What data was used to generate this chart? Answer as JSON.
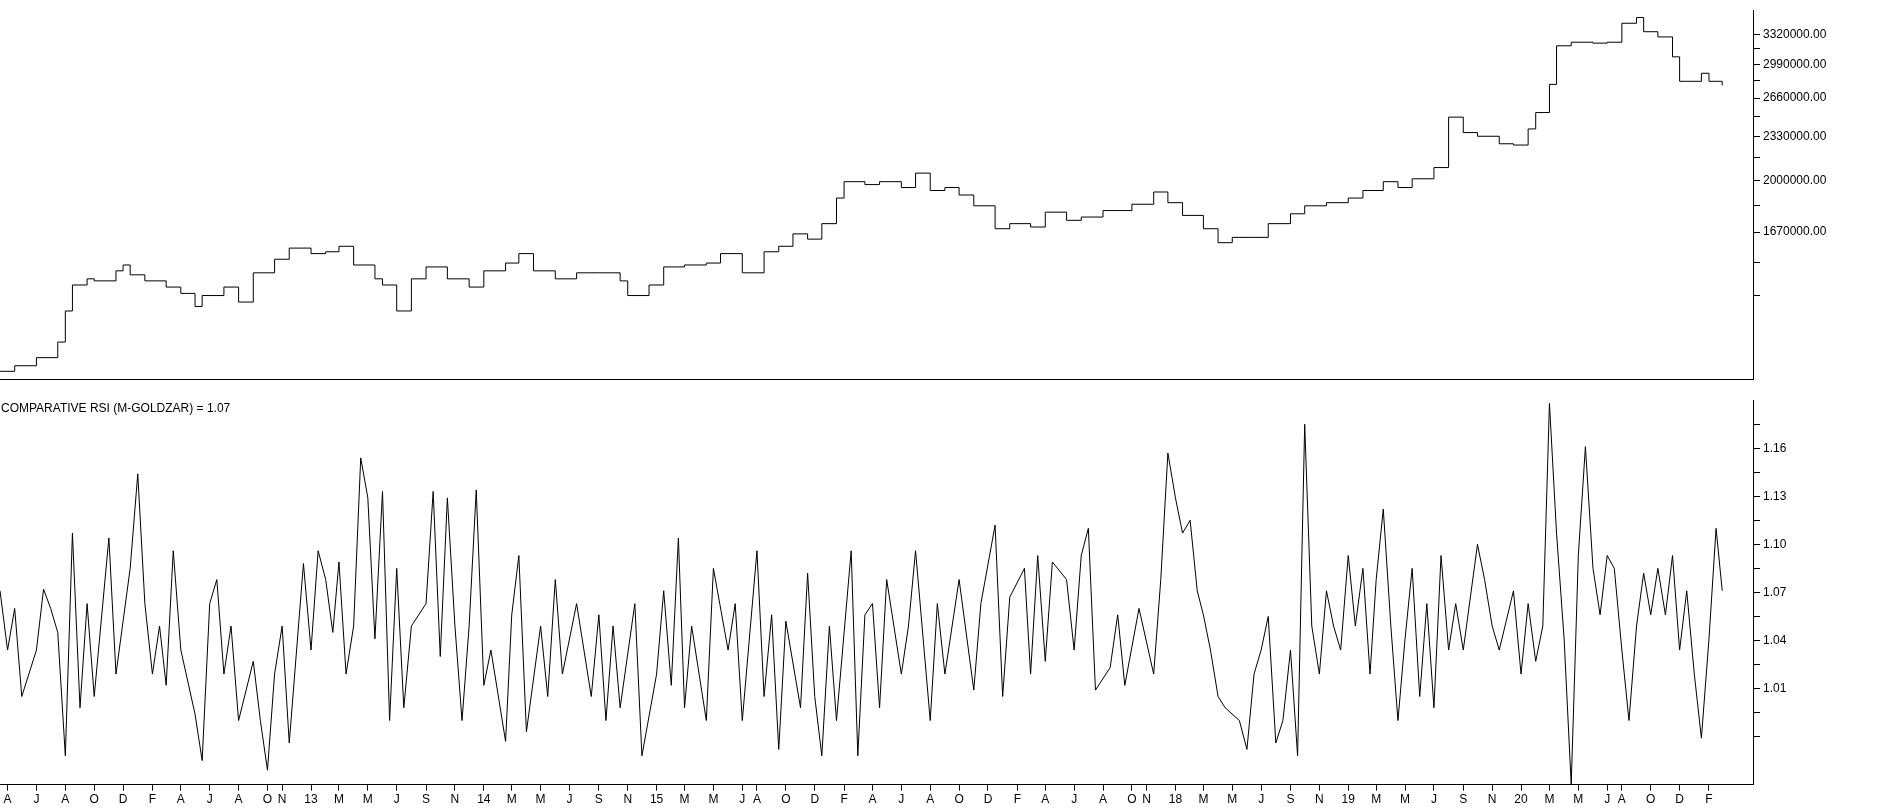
{
  "chart_data": [
    {
      "type": "step",
      "x": [
        "2011-03-16",
        "2011-04-16",
        "2011-06-01",
        "2011-07-16",
        "2011-08-01",
        "2011-08-16",
        "2011-09-16",
        "2011-10-01",
        "2011-11-16",
        "2011-12-01",
        "2011-12-16",
        "2012-01-16",
        "2012-03-01",
        "2012-04-01",
        "2012-05-01",
        "2012-05-16",
        "2012-07-01",
        "2012-08-01",
        "2012-09-01",
        "2012-10-16",
        "2012-11-16",
        "2013-01-01",
        "2013-02-01",
        "2013-03-01",
        "2013-04-01",
        "2013-05-16",
        "2013-06-01",
        "2013-07-01",
        "2013-08-01",
        "2013-09-01",
        "2013-10-16",
        "2013-12-01",
        "2014-01-01",
        "2014-02-16",
        "2014-03-16",
        "2014-04-16",
        "2014-06-01",
        "2014-07-16",
        "2014-09-01",
        "2014-10-16",
        "2014-11-01",
        "2014-12-16",
        "2015-01-16",
        "2015-03-01",
        "2015-04-16",
        "2015-05-16",
        "2015-07-01",
        "2015-08-16",
        "2015-09-16",
        "2015-10-16",
        "2015-11-16",
        "2015-12-16",
        "2016-01-16",
        "2016-02-01",
        "2016-03-16",
        "2016-04-16",
        "2016-06-01",
        "2016-07-01",
        "2016-08-01",
        "2016-09-01",
        "2016-10-01",
        "2016-11-01",
        "2016-12-16",
        "2017-01-16",
        "2017-03-01",
        "2017-04-01",
        "2017-05-16",
        "2017-06-16",
        "2017-08-01",
        "2017-10-01",
        "2017-11-16",
        "2017-12-16",
        "2018-01-16",
        "2018-03-01",
        "2018-04-01",
        "2018-05-01",
        "2018-06-16",
        "2018-07-16",
        "2018-09-01",
        "2018-10-01",
        "2018-11-16",
        "2019-01-01",
        "2019-02-01",
        "2019-03-16",
        "2019-04-16",
        "2019-05-16",
        "2019-07-01",
        "2019-08-01",
        "2019-09-01",
        "2019-10-01",
        "2019-11-16",
        "2019-12-16",
        "2020-01-16",
        "2020-02-01",
        "2020-03-01",
        "2020-03-16",
        "2020-04-16",
        "2020-06-01",
        "2020-07-01",
        "2020-08-01",
        "2020-09-01",
        "2020-09-16",
        "2020-10-16",
        "2020-11-16",
        "2020-12-01",
        "2021-01-16",
        "2021-02-01",
        "2021-03-01"
      ],
      "xlim": [
        "2011-03-16",
        "2021-05-05"
      ],
      "series": [
        {
          "color": "#000000",
          "values": [
            1030000,
            1050000,
            1080000,
            1140000,
            1270000,
            1390000,
            1420000,
            1410000,
            1460000,
            1490000,
            1440000,
            1410000,
            1380000,
            1350000,
            1290000,
            1340000,
            1380000,
            1310000,
            1450000,
            1520000,
            1580000,
            1550000,
            1560000,
            1590000,
            1490000,
            1420000,
            1390000,
            1270000,
            1420000,
            1480000,
            1420000,
            1380000,
            1460000,
            1500000,
            1550000,
            1460000,
            1420000,
            1450000,
            1450000,
            1410000,
            1340000,
            1390000,
            1480000,
            1490000,
            1500000,
            1550000,
            1450000,
            1560000,
            1590000,
            1660000,
            1630000,
            1720000,
            1880000,
            1990000,
            1970000,
            1990000,
            1950000,
            2050000,
            1930000,
            1950000,
            1900000,
            1830000,
            1690000,
            1720000,
            1700000,
            1790000,
            1740000,
            1760000,
            1800000,
            1840000,
            1920000,
            1850000,
            1770000,
            1690000,
            1610000,
            1640000,
            1640000,
            1720000,
            1780000,
            1830000,
            1850000,
            1880000,
            1930000,
            1990000,
            1950000,
            2010000,
            2090000,
            2490000,
            2360000,
            2330000,
            2270000,
            2260000,
            2390000,
            2530000,
            2790000,
            3190000,
            3230000,
            3220000,
            3230000,
            3450000,
            3520000,
            3350000,
            3290000,
            3070000,
            2820000,
            2900000,
            2820000,
            2780000
          ]
        }
      ],
      "log": true,
      "ylim": [
        1000000,
        3610000
      ],
      "yticks": [
        {
          "value": 3320000,
          "label": "3320000.00"
        },
        {
          "value": 3155000,
          "label": null
        },
        {
          "value": 2990000,
          "label": "2990000.00"
        },
        {
          "value": 2825000,
          "label": null
        },
        {
          "value": 2660000,
          "label": "2660000.00"
        },
        {
          "value": 2495000,
          "label": null
        },
        {
          "value": 2330000,
          "label": "2330000.00"
        },
        {
          "value": 2165000,
          "label": null
        },
        {
          "value": 2000000,
          "label": "2000000.00"
        },
        {
          "value": 1835000,
          "label": null
        },
        {
          "value": 1670000,
          "label": "1670000.00"
        },
        {
          "value": 1505000,
          "label": null
        },
        {
          "value": 1340000,
          "label": null
        }
      ],
      "tick_labels": "y"
    },
    {
      "type": "line",
      "title": "COMPARATIVE RSI (M-GOLDZAR) = 1.07",
      "x": [
        "2011-03-16",
        "2011-04-01",
        "2011-04-16",
        "2011-05-01",
        "2011-06-01",
        "2011-06-16",
        "2011-07-01",
        "2011-07-16",
        "2011-08-01",
        "2011-08-16",
        "2011-09-01",
        "2011-09-16",
        "2011-10-01",
        "2011-11-01",
        "2011-11-16",
        "2011-12-16",
        "2012-01-01",
        "2012-01-16",
        "2012-02-01",
        "2012-02-16",
        "2012-03-01",
        "2012-03-16",
        "2012-04-01",
        "2012-05-01",
        "2012-05-16",
        "2012-06-01",
        "2012-06-16",
        "2012-07-01",
        "2012-07-16",
        "2012-08-01",
        "2012-09-01",
        "2012-09-16",
        "2012-10-01",
        "2012-10-16",
        "2012-11-01",
        "2012-11-16",
        "2012-12-16",
        "2013-01-01",
        "2013-01-16",
        "2013-02-01",
        "2013-02-16",
        "2013-03-01",
        "2013-03-16",
        "2013-04-01",
        "2013-04-16",
        "2013-05-01",
        "2013-05-16",
        "2013-06-01",
        "2013-06-16",
        "2013-07-01",
        "2013-07-16",
        "2013-08-01",
        "2013-09-01",
        "2013-09-16",
        "2013-10-01",
        "2013-10-16",
        "2013-11-01",
        "2013-11-16",
        "2013-12-01",
        "2013-12-16",
        "2014-01-01",
        "2014-01-16",
        "2014-02-16",
        "2014-03-01",
        "2014-03-16",
        "2014-04-01",
        "2014-05-01",
        "2014-05-16",
        "2014-06-01",
        "2014-06-16",
        "2014-07-16",
        "2014-08-16",
        "2014-09-01",
        "2014-09-16",
        "2014-10-01",
        "2014-10-16",
        "2014-11-16",
        "2014-12-01",
        "2015-01-01",
        "2015-01-16",
        "2015-02-01",
        "2015-02-16",
        "2015-03-01",
        "2015-03-16",
        "2015-04-16",
        "2015-05-01",
        "2015-06-01",
        "2015-06-16",
        "2015-07-01",
        "2015-08-01",
        "2015-08-16",
        "2015-09-01",
        "2015-09-16",
        "2015-10-01",
        "2015-11-01",
        "2015-11-16",
        "2015-12-01",
        "2015-12-16",
        "2016-01-01",
        "2016-01-16",
        "2016-02-16",
        "2016-03-01",
        "2016-03-16",
        "2016-04-01",
        "2016-04-16",
        "2016-05-01",
        "2016-06-01",
        "2016-06-16",
        "2016-07-01",
        "2016-08-01",
        "2016-08-16",
        "2016-09-01",
        "2016-10-01",
        "2016-11-01",
        "2016-11-16",
        "2016-12-16",
        "2017-01-01",
        "2017-01-16",
        "2017-02-16",
        "2017-03-01",
        "2017-03-16",
        "2017-04-01",
        "2017-04-16",
        "2017-05-16",
        "2017-06-01",
        "2017-06-16",
        "2017-07-01",
        "2017-07-16",
        "2017-08-16",
        "2017-09-01",
        "2017-09-16",
        "2017-10-16",
        "2017-11-16",
        "2017-12-01",
        "2017-12-16",
        "2018-01-01",
        "2018-01-16",
        "2018-02-01",
        "2018-02-16",
        "2018-03-01",
        "2018-03-16",
        "2018-04-01",
        "2018-04-16",
        "2018-05-16",
        "2018-06-01",
        "2018-06-16",
        "2018-07-01",
        "2018-07-16",
        "2018-08-01",
        "2018-08-16",
        "2018-09-01",
        "2018-09-16",
        "2018-10-01",
        "2018-10-16",
        "2018-11-01",
        "2018-11-16",
        "2018-12-01",
        "2018-12-16",
        "2019-01-01",
        "2019-01-16",
        "2019-02-01",
        "2019-02-16",
        "2019-03-01",
        "2019-03-16",
        "2019-04-01",
        "2019-04-16",
        "2019-05-01",
        "2019-05-16",
        "2019-06-01",
        "2019-06-16",
        "2019-07-01",
        "2019-07-16",
        "2019-08-01",
        "2019-08-16",
        "2019-09-01",
        "2019-10-01",
        "2019-10-16",
        "2019-11-01",
        "2019-11-16",
        "2019-12-16",
        "2020-01-01",
        "2020-01-16",
        "2020-02-01",
        "2020-02-16",
        "2020-03-01",
        "2020-03-16",
        "2020-04-01",
        "2020-04-16",
        "2020-05-01",
        "2020-05-16",
        "2020-06-01",
        "2020-06-16",
        "2020-07-01",
        "2020-07-16",
        "2020-08-01",
        "2020-08-16",
        "2020-09-01",
        "2020-09-16",
        "2020-10-01",
        "2020-10-16",
        "2020-11-01",
        "2020-11-16",
        "2020-12-01",
        "2020-12-16",
        "2021-01-01",
        "2021-01-16",
        "2021-02-01",
        "2021-02-16",
        "2021-03-01"
      ],
      "series": [
        {
          "color": "#000000",
          "values": [
            1.071,
            1.034,
            1.06,
            1.005,
            1.034,
            1.072,
            1.06,
            1.045,
            0.968,
            1.107,
            0.998,
            1.063,
            1.005,
            1.104,
            1.019,
            1.085,
            1.144,
            1.063,
            1.019,
            1.049,
            1.012,
            1.096,
            1.034,
            0.994,
            0.965,
            1.063,
            1.078,
            1.019,
            1.049,
            0.99,
            1.027,
            0.99,
            0.959,
            1.019,
            1.049,
            0.976,
            1.088,
            1.034,
            1.096,
            1.078,
            1.045,
            1.089,
            1.019,
            1.049,
            1.154,
            1.129,
            1.041,
            1.133,
            0.99,
            1.085,
            0.998,
            1.049,
            1.063,
            1.133,
            1.03,
            1.129,
            1.049,
            0.99,
            1.049,
            1.134,
            1.012,
            1.034,
            0.977,
            1.056,
            1.093,
            0.983,
            1.049,
            1.005,
            1.078,
            1.019,
            1.063,
            1.005,
            1.056,
            0.99,
            1.049,
            0.998,
            1.063,
            0.968,
            1.019,
            1.071,
            1.012,
            1.104,
            0.998,
            1.049,
            0.99,
            1.085,
            1.034,
            1.063,
            0.99,
            1.096,
            1.005,
            1.056,
            0.972,
            1.052,
            0.998,
            1.082,
            1.005,
            0.968,
            1.049,
            0.99,
            1.096,
            0.968,
            1.056,
            1.063,
            0.998,
            1.078,
            1.019,
            1.049,
            1.096,
            0.99,
            1.063,
            1.019,
            1.078,
            1.009,
            1.063,
            1.112,
            1.005,
            1.067,
            1.085,
            1.019,
            1.093,
            1.027,
            1.089,
            1.078,
            1.034,
            1.093,
            1.11,
            1.009,
            1.023,
            1.056,
            1.012,
            1.06,
            1.019,
            1.078,
            1.157,
            1.129,
            1.107,
            1.115,
            1.071,
            1.056,
            1.034,
            1.005,
            0.998,
            0.99,
            0.972,
            1.019,
            1.034,
            1.055,
            0.976,
            0.99,
            1.034,
            0.968,
            1.175,
            1.049,
            1.019,
            1.071,
            1.049,
            1.034,
            1.093,
            1.049,
            1.085,
            1.019,
            1.078,
            1.122,
            1.049,
            0.99,
            1.041,
            1.085,
            1.005,
            1.063,
            0.998,
            1.093,
            1.034,
            1.063,
            1.034,
            1.1,
            1.078,
            1.049,
            1.034,
            1.071,
            1.019,
            1.063,
            1.027,
            1.049,
            1.188,
            1.107,
            1.041,
            0.95,
            1.093,
            1.161,
            1.085,
            1.056,
            1.093,
            1.085,
            1.034,
            0.99,
            1.049,
            1.082,
            1.056,
            1.085,
            1.056,
            1.093,
            1.034,
            1.071,
            1.019,
            0.979,
            1.041,
            1.11,
            1.071
          ]
        }
      ],
      "xlim": [
        "2011-03-16",
        "2021-05-05"
      ],
      "xticks": [
        {
          "value": "2011-04-01",
          "label": "A"
        },
        {
          "value": "2011-06-01",
          "label": "J"
        },
        {
          "value": "2011-08-01",
          "label": "A"
        },
        {
          "value": "2011-10-01",
          "label": "O"
        },
        {
          "value": "2011-12-01",
          "label": "D"
        },
        {
          "value": "2012-02-01",
          "label": "F"
        },
        {
          "value": "2012-04-01",
          "label": "A"
        },
        {
          "value": "2012-06-01",
          "label": "J"
        },
        {
          "value": "2012-08-01",
          "label": "A"
        },
        {
          "value": "2012-10-01",
          "label": "O"
        },
        {
          "value": "2012-11-01",
          "label": "N"
        },
        {
          "value": "2013-01-01",
          "label": "13"
        },
        {
          "value": "2013-03-01",
          "label": "M"
        },
        {
          "value": "2013-05-01",
          "label": "M"
        },
        {
          "value": "2013-07-01",
          "label": "J"
        },
        {
          "value": "2013-09-01",
          "label": "S"
        },
        {
          "value": "2013-11-01",
          "label": "N"
        },
        {
          "value": "2014-01-01",
          "label": "14"
        },
        {
          "value": "2014-03-01",
          "label": "M"
        },
        {
          "value": "2014-05-01",
          "label": "M"
        },
        {
          "value": "2014-07-01",
          "label": "J"
        },
        {
          "value": "2014-09-01",
          "label": "S"
        },
        {
          "value": "2014-11-01",
          "label": "N"
        },
        {
          "value": "2015-01-01",
          "label": "15"
        },
        {
          "value": "2015-03-01",
          "label": "M"
        },
        {
          "value": "2015-05-01",
          "label": "M"
        },
        {
          "value": "2015-07-01",
          "label": "J"
        },
        {
          "value": "2015-08-01",
          "label": "A"
        },
        {
          "value": "2015-10-01",
          "label": "O"
        },
        {
          "value": "2015-12-01",
          "label": "D"
        },
        {
          "value": "2016-02-01",
          "label": "F"
        },
        {
          "value": "2016-04-01",
          "label": "A"
        },
        {
          "value": "2016-06-01",
          "label": "J"
        },
        {
          "value": "2016-08-01",
          "label": "A"
        },
        {
          "value": "2016-10-01",
          "label": "O"
        },
        {
          "value": "2016-12-01",
          "label": "D"
        },
        {
          "value": "2017-02-01",
          "label": "F"
        },
        {
          "value": "2017-04-01",
          "label": "A"
        },
        {
          "value": "2017-06-01",
          "label": "J"
        },
        {
          "value": "2017-08-01",
          "label": "A"
        },
        {
          "value": "2017-10-01",
          "label": "O"
        },
        {
          "value": "2017-11-01",
          "label": "N"
        },
        {
          "value": "2018-01-01",
          "label": "18"
        },
        {
          "value": "2018-03-01",
          "label": "M"
        },
        {
          "value": "2018-05-01",
          "label": "M"
        },
        {
          "value": "2018-07-01",
          "label": "J"
        },
        {
          "value": "2018-09-01",
          "label": "S"
        },
        {
          "value": "2018-11-01",
          "label": "N"
        },
        {
          "value": "2019-01-01",
          "label": "19"
        },
        {
          "value": "2019-03-01",
          "label": "M"
        },
        {
          "value": "2019-05-01",
          "label": "M"
        },
        {
          "value": "2019-07-01",
          "label": "J"
        },
        {
          "value": "2019-09-01",
          "label": "S"
        },
        {
          "value": "2019-11-01",
          "label": "N"
        },
        {
          "value": "2020-01-01",
          "label": "20"
        },
        {
          "value": "2020-03-01",
          "label": "M"
        },
        {
          "value": "2020-05-01",
          "label": "M"
        },
        {
          "value": "2020-07-01",
          "label": "J"
        },
        {
          "value": "2020-08-01",
          "label": "A"
        },
        {
          "value": "2020-10-01",
          "label": "O"
        },
        {
          "value": "2020-12-01",
          "label": "D"
        },
        {
          "value": "2021-02-01",
          "label": "F"
        }
      ],
      "ylim": [
        0.95,
        1.19
      ],
      "yticks": [
        {
          "value": 1.175,
          "label": null
        },
        {
          "value": 1.16,
          "label": "1.16"
        },
        {
          "value": 1.145,
          "label": null
        },
        {
          "value": 1.13,
          "label": "1.13"
        },
        {
          "value": 1.115,
          "label": null
        },
        {
          "value": 1.1,
          "label": "1.10"
        },
        {
          "value": 1.085,
          "label": null
        },
        {
          "value": 1.07,
          "label": "1.07"
        },
        {
          "value": 1.055,
          "label": null
        },
        {
          "value": 1.04,
          "label": "1.04"
        },
        {
          "value": 1.025,
          "label": null
        },
        {
          "value": 1.01,
          "label": "1.01"
        },
        {
          "value": 0.995,
          "label": null
        },
        {
          "value": 0.98,
          "label": null
        }
      ]
    }
  ]
}
